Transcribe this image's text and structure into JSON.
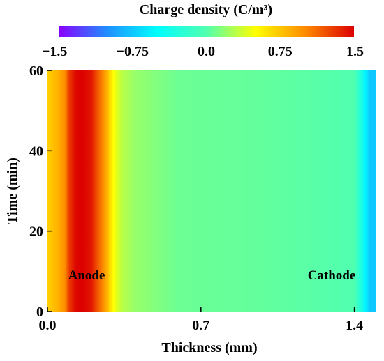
{
  "chart_data": {
    "type": "heatmap",
    "colorbar": {
      "title": "Charge density (C/m³)",
      "ticks": [
        "−1.5",
        "−0.75",
        "0.0",
        "0.75",
        "1.5"
      ],
      "range": [
        -1.5,
        1.5
      ],
      "colormap": [
        "#8a00ff",
        "#1e90ff",
        "#00ffff",
        "#50ffb0",
        "#ffff00",
        "#ff8c00",
        "#dc0000"
      ]
    },
    "xlabel": "Thickness  (mm)",
    "ylabel": "Time  (min)",
    "xlim": [
      0.0,
      1.5
    ],
    "ylim": [
      0,
      60
    ],
    "xticks": [
      0.0,
      0.7,
      1.4
    ],
    "xtick_labels": [
      "0.0",
      "0.7",
      "1.4"
    ],
    "yticks": [
      0,
      20,
      40,
      60
    ],
    "ytick_labels": [
      "0",
      "20",
      "40",
      "60"
    ],
    "profile": {
      "thickness": [
        0.0,
        0.05,
        0.08,
        0.1,
        0.13,
        0.16,
        0.2,
        0.24,
        0.27,
        0.3,
        0.34,
        0.4,
        0.6,
        1.0,
        1.4,
        1.43,
        1.45,
        1.47,
        1.5
      ],
      "charge_density": [
        0.7,
        0.85,
        1.0,
        1.3,
        1.48,
        1.5,
        1.42,
        1.1,
        0.85,
        0.5,
        0.3,
        0.2,
        0.08,
        0.05,
        0.0,
        -0.3,
        -0.55,
        -0.75,
        -0.75
      ]
    },
    "annotations": [
      "Anode",
      "Cathode"
    ]
  }
}
